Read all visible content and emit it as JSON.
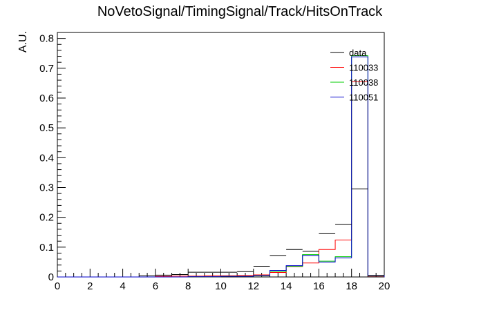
{
  "chart_data": {
    "type": "histogram",
    "title": "NoVetoSignal/TimingSignal/Track/HitsOnTrack",
    "xlabel": "",
    "ylabel": "A.U.",
    "xlim": [
      0,
      20
    ],
    "ylim": [
      0,
      0.82
    ],
    "xticks": [
      "0",
      "2",
      "4",
      "6",
      "8",
      "10",
      "12",
      "14",
      "16",
      "18",
      "20"
    ],
    "yticks": [
      "0",
      "0.1",
      "0.2",
      "0.3",
      "0.4",
      "0.5",
      "0.6",
      "0.7",
      "0.8"
    ],
    "bin_edges": [
      0,
      1,
      2,
      3,
      4,
      5,
      6,
      7,
      8,
      9,
      10,
      11,
      12,
      13,
      14,
      15,
      16,
      17,
      18,
      19,
      20
    ],
    "legend_position": "top-right",
    "series": [
      {
        "name": "data",
        "color": "#000000",
        "style": "points",
        "values": [
          0,
          0,
          0,
          0,
          0,
          0.004,
          0.006,
          0.008,
          0.016,
          0.016,
          0.016,
          0.018,
          0.036,
          0.072,
          0.092,
          0.086,
          0.145,
          0.176,
          0.295,
          0.005
        ]
      },
      {
        "name": "110033",
        "color": "#ff0000",
        "style": "step",
        "values": [
          0,
          0,
          0,
          0,
          0,
          0,
          0.002,
          0.003,
          0.003,
          0.004,
          0.004,
          0.005,
          0.007,
          0.015,
          0.035,
          0.047,
          0.092,
          0.124,
          0.655,
          0.003
        ]
      },
      {
        "name": "110038",
        "color": "#00cc00",
        "style": "step",
        "values": [
          0,
          0,
          0,
          0,
          0,
          0,
          0,
          0,
          0.001,
          0.001,
          0.002,
          0.002,
          0.004,
          0.018,
          0.036,
          0.075,
          0.053,
          0.068,
          0.742,
          0.004
        ]
      },
      {
        "name": "110051",
        "color": "#0000cc",
        "style": "step",
        "values": [
          0,
          0,
          0,
          0,
          0,
          0,
          0,
          0,
          0.001,
          0.001,
          0.002,
          0.002,
          0.005,
          0.022,
          0.038,
          0.072,
          0.05,
          0.064,
          0.738,
          0.004
        ]
      }
    ]
  }
}
